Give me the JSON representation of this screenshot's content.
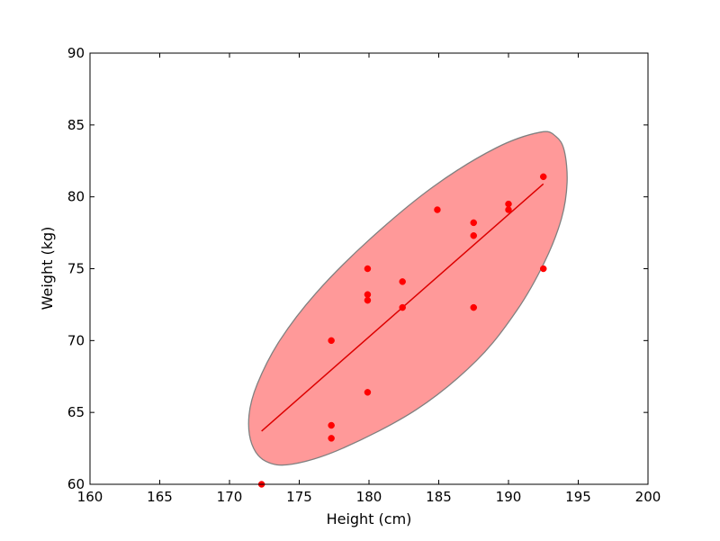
{
  "chart_data": {
    "type": "scatter",
    "xlabel": "Height (cm)",
    "ylabel": "Weight (kg)",
    "xlim": [
      160,
      200
    ],
    "ylim": [
      60,
      90
    ],
    "xticks": [
      160,
      165,
      170,
      175,
      180,
      185,
      190,
      195,
      200
    ],
    "yticks": [
      60,
      65,
      70,
      75,
      80,
      85,
      90
    ],
    "grid": false,
    "points": [
      {
        "x": 172.3,
        "y": 60.0
      },
      {
        "x": 177.3,
        "y": 63.2
      },
      {
        "x": 177.3,
        "y": 64.1
      },
      {
        "x": 177.3,
        "y": 70.0
      },
      {
        "x": 179.9,
        "y": 66.4
      },
      {
        "x": 179.9,
        "y": 72.8
      },
      {
        "x": 179.9,
        "y": 73.2
      },
      {
        "x": 179.9,
        "y": 75.0
      },
      {
        "x": 182.4,
        "y": 72.3
      },
      {
        "x": 182.4,
        "y": 74.1
      },
      {
        "x": 184.9,
        "y": 79.1
      },
      {
        "x": 187.5,
        "y": 72.3
      },
      {
        "x": 187.5,
        "y": 77.3
      },
      {
        "x": 187.5,
        "y": 78.2
      },
      {
        "x": 190.0,
        "y": 79.1
      },
      {
        "x": 190.0,
        "y": 79.5
      },
      {
        "x": 192.5,
        "y": 75.0
      },
      {
        "x": 192.5,
        "y": 81.4
      }
    ],
    "regression_line": {
      "start": {
        "x": 172.3,
        "y": 63.7
      },
      "end": {
        "x": 192.5,
        "y": 80.9
      }
    },
    "ellipse_outline": [
      {
        "x": 192.3,
        "y": 84.5
      },
      {
        "x": 193.4,
        "y": 84.2
      },
      {
        "x": 194.0,
        "y": 83.2
      },
      {
        "x": 194.2,
        "y": 81.0
      },
      {
        "x": 193.8,
        "y": 78.5
      },
      {
        "x": 192.6,
        "y": 75.5
      },
      {
        "x": 190.6,
        "y": 72.1
      },
      {
        "x": 187.7,
        "y": 68.6
      },
      {
        "x": 183.4,
        "y": 65.2
      },
      {
        "x": 178.1,
        "y": 62.5
      },
      {
        "x": 174.5,
        "y": 61.4
      },
      {
        "x": 172.6,
        "y": 61.6
      },
      {
        "x": 171.6,
        "y": 62.8
      },
      {
        "x": 171.4,
        "y": 64.8
      },
      {
        "x": 172.0,
        "y": 67.0
      },
      {
        "x": 173.6,
        "y": 70.0
      },
      {
        "x": 176.2,
        "y": 73.3
      },
      {
        "x": 180.0,
        "y": 77.0
      },
      {
        "x": 184.6,
        "y": 80.7
      },
      {
        "x": 189.1,
        "y": 83.4
      }
    ],
    "colors": {
      "points": "#ff0000",
      "line": "#dd0000",
      "ellipse_fill": "#ff8080",
      "ellipse_edge": "#808080"
    }
  }
}
